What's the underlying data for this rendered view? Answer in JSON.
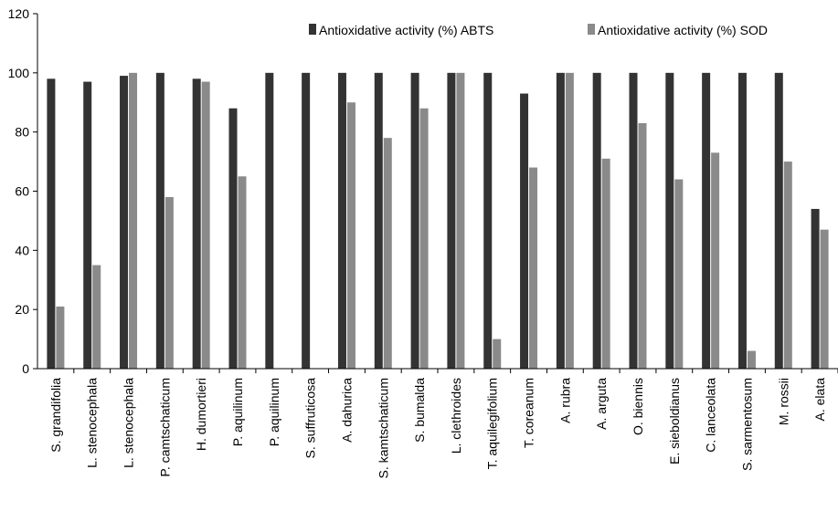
{
  "chart_data": {
    "type": "bar",
    "title": "",
    "xlabel": "",
    "ylabel": "",
    "ylim": [
      0,
      120
    ],
    "yticks": [
      0,
      20,
      40,
      60,
      80,
      100,
      120
    ],
    "grid": false,
    "legend_position": "top-right",
    "categories": [
      "S. grandifolia",
      "L. stenocephala",
      "L. stenocephala",
      "P. camtschaticum",
      "H. dumortieri",
      "P. aquilinum",
      "P. aquilinum",
      "S. suffruticosa",
      "A. dahurica",
      "S. kamtschaticum",
      "S. bumalda",
      "L. clethroides",
      "T. aquilegifolium",
      "T. coreanum",
      "A. rubra",
      "A. arguta",
      "O. biennis",
      "E. sieboldianus",
      "C. lanceolata",
      "S. sarmentosum",
      "M. rossii",
      "A. elata"
    ],
    "series": [
      {
        "name": "Antioxidative activity (%) ABTS",
        "color": "#333333",
        "values": [
          98,
          97,
          99,
          100,
          98,
          88,
          100,
          100,
          100,
          100,
          100,
          100,
          100,
          93,
          100,
          100,
          100,
          100,
          100,
          100,
          100,
          54
        ]
      },
      {
        "name": "Antioxidative activity (%) SOD",
        "color": "#8a8a8a",
        "values": [
          21,
          35,
          100,
          58,
          97,
          65,
          0,
          0,
          90,
          78,
          88,
          100,
          10,
          68,
          100,
          71,
          83,
          64,
          73,
          6,
          70,
          47
        ]
      }
    ]
  }
}
